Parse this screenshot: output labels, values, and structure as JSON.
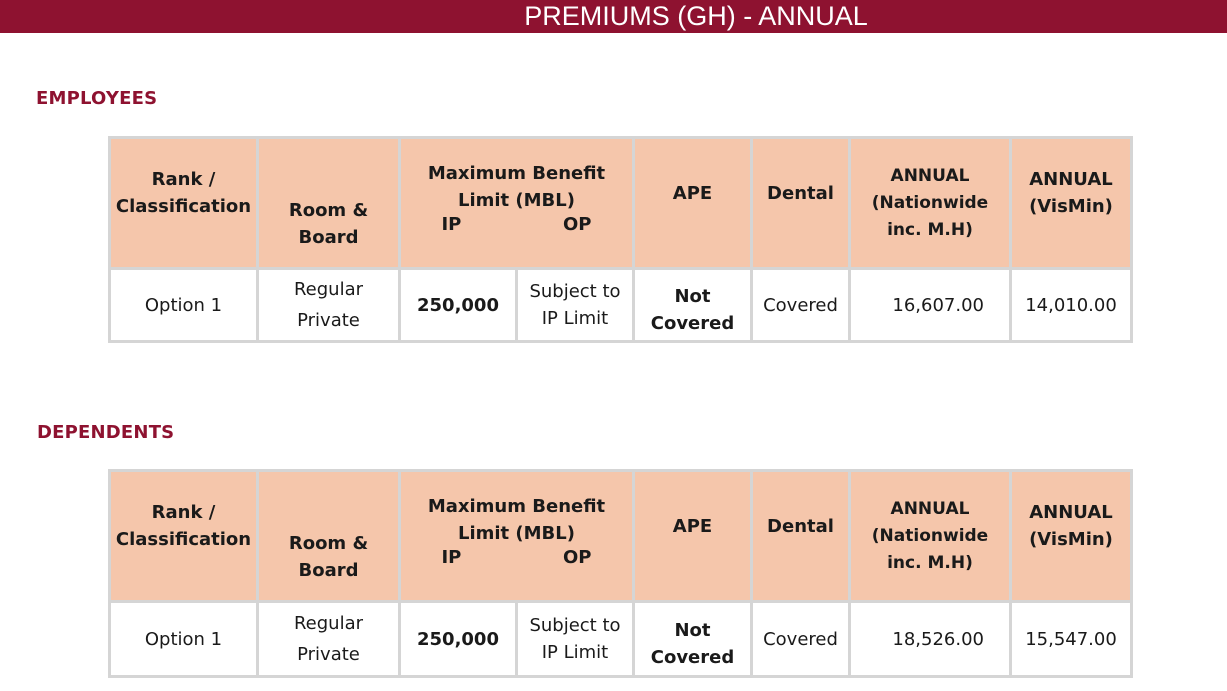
{
  "page": {
    "title": "PREMIUMS (GH) - ANNUAL",
    "accent_color": "#8e1230",
    "header_fill": "#f5c6ab"
  },
  "columns": {
    "rank": "Rank /\nClassification",
    "room": "Room &\nBoard",
    "mbl_title": "Maximum Benefit\nLimit (MBL)",
    "mbl_ip": "IP",
    "mbl_op": "OP",
    "ape": "APE",
    "dental": "Dental",
    "annual_nationwide": "ANNUAL\n(Nationwide\ninc. M.H)",
    "annual_vismin": "ANNUAL\n(VisMin)"
  },
  "sections": [
    {
      "heading": "EMPLOYEES",
      "row": {
        "rank": "Option 1",
        "room": "Regular\nPrivate",
        "ip": "250,000",
        "op": "Subject to\nIP Limit",
        "ape": "Not\nCovered",
        "dental": "Covered",
        "annual_nationwide": "16,607.00",
        "annual_vismin": "14,010.00"
      }
    },
    {
      "heading": "DEPENDENTS",
      "row": {
        "rank": "Option 1",
        "room": "Regular\nPrivate",
        "ip": "250,000",
        "op": "Subject to\nIP Limit",
        "ape": "Not\nCovered",
        "dental": "Covered",
        "annual_nationwide": "18,526.00",
        "annual_vismin": "15,547.00"
      }
    }
  ]
}
